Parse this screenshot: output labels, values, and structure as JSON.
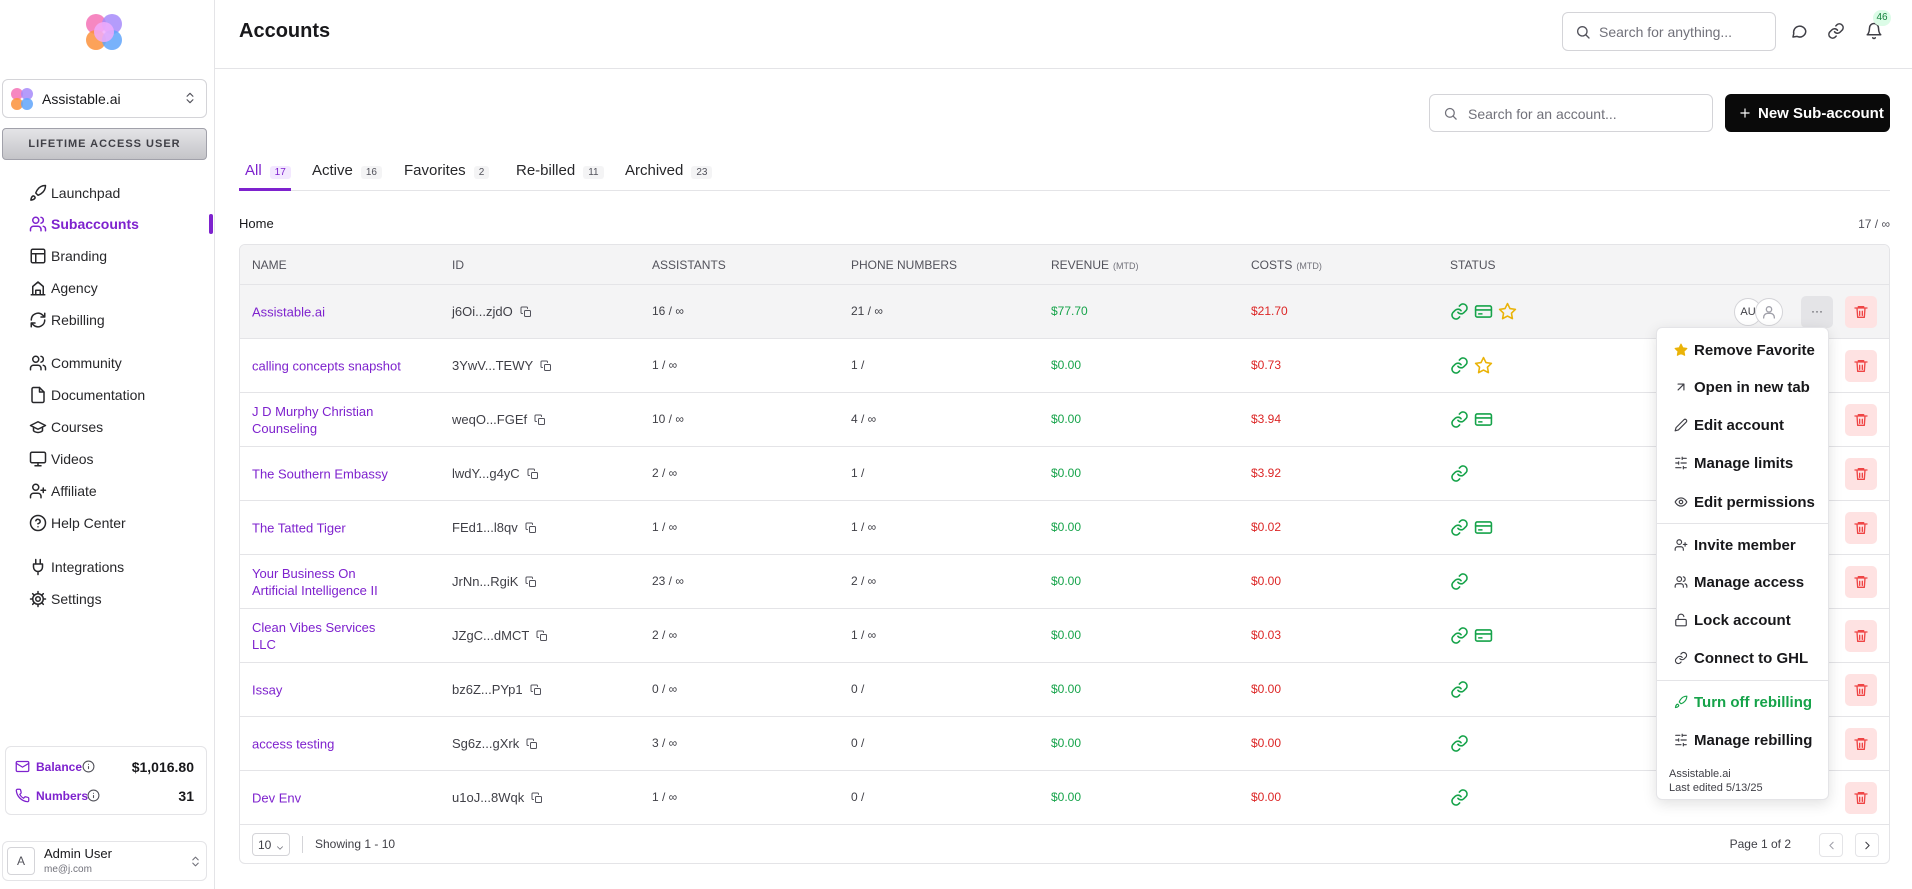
{
  "header": {
    "title": "Accounts",
    "search_placeholder": "Search for anything...",
    "notification_count": "46"
  },
  "sidebar": {
    "workspace": "Assistable.ai",
    "badge": "LIFETIME ACCESS USER",
    "nav": [
      "Launchpad",
      "Subaccounts",
      "Branding",
      "Agency",
      "Rebilling"
    ],
    "nav2": [
      "Community",
      "Documentation",
      "Courses",
      "Videos",
      "Affiliate",
      "Help Center"
    ],
    "nav3": [
      "Integrations",
      "Settings"
    ],
    "balance_label": "Balance",
    "balance": "$1,016.80",
    "numbers_label": "Numbers",
    "numbers": "31",
    "user_initial": "A",
    "user_name": "Admin User",
    "user_email": "me@j.com"
  },
  "toolbar": {
    "search_placeholder": "Search for an account...",
    "new_button": "New Sub-account"
  },
  "tabs": [
    {
      "label": "All",
      "count": "17"
    },
    {
      "label": "Active",
      "count": "16"
    },
    {
      "label": "Favorites",
      "count": "2"
    },
    {
      "label": "Re-billed",
      "count": "11"
    },
    {
      "label": "Archived",
      "count": "23"
    }
  ],
  "breadcrumb": "Home",
  "total": "17 / ∞",
  "table": {
    "headers": [
      "NAME",
      "ID",
      "ASSISTANTS",
      "PHONE NUMBERS",
      {
        "label": "REVENUE",
        "note": "(MTD)"
      },
      {
        "label": "COSTS",
        "note": "(MTD)"
      },
      "STATUS"
    ],
    "active_avatar": "AU",
    "more": "···",
    "rows": [
      {
        "name": "Assistable.ai",
        "id": "j6Oi...zjdO",
        "assistants": "16 / ∞",
        "phones": "21 / ∞",
        "revenue": "$77.70",
        "costs": "$21.70"
      },
      {
        "name": "calling concepts snapshot",
        "id": "3YwV...TEWY",
        "assistants": "1 / ∞",
        "phones": "1 /",
        "revenue": "$0.00",
        "costs": "$0.73"
      },
      {
        "name": "J D Murphy Christian Counseling",
        "id": "weqO...FGEf",
        "assistants": "10 / ∞",
        "phones": "4 / ∞",
        "revenue": "$0.00",
        "costs": "$3.94"
      },
      {
        "name": "The Southern Embassy",
        "id": "lwdY...g4yC",
        "assistants": "2 / ∞",
        "phones": "1 /",
        "revenue": "$0.00",
        "costs": "$3.92"
      },
      {
        "name": "The Tatted Tiger",
        "id": "FEd1...l8qv",
        "assistants": "1 / ∞",
        "phones": "1 / ∞",
        "revenue": "$0.00",
        "costs": "$0.02"
      },
      {
        "name": "Your Business On Artificial Intelligence II",
        "id": "JrNn...RgiK",
        "assistants": "23 / ∞",
        "phones": "2 / ∞",
        "revenue": "$0.00",
        "costs": "$0.00"
      },
      {
        "name": "Clean Vibes Services LLC",
        "id": "JZgC...dMCT",
        "assistants": "2 / ∞",
        "phones": "1 / ∞",
        "revenue": "$0.00",
        "costs": "$0.03"
      },
      {
        "name": "Issay",
        "id": "bz6Z...PYp1",
        "assistants": "0 / ∞",
        "phones": "0 /",
        "revenue": "$0.00",
        "costs": "$0.00"
      },
      {
        "name": "access testing",
        "id": "Sg6z...gXrk",
        "assistants": "3 / ∞",
        "phones": "0 /",
        "revenue": "$0.00",
        "costs": "$0.00"
      },
      {
        "name": "Dev Env",
        "id": "u1oJ...8Wqk",
        "assistants": "1 / ∞",
        "phones": "0 /",
        "revenue": "$0.00",
        "costs": "$0.00"
      }
    ]
  },
  "menu": {
    "groups": [
      [
        "Remove Favorite",
        "Open in new tab",
        "Edit account",
        "Manage limits",
        "Edit permissions"
      ],
      [
        "Invite member",
        "Manage access",
        "Lock account",
        "Connect to GHL"
      ],
      [
        "Turn off rebilling",
        "Manage rebilling"
      ]
    ],
    "footer_name": "Assistable.ai",
    "footer_edited": "Last edited 5/13/25"
  },
  "pagination": {
    "page_size": "10",
    "showing": "Showing 1 - 10",
    "page": "Page 1 of 2"
  }
}
